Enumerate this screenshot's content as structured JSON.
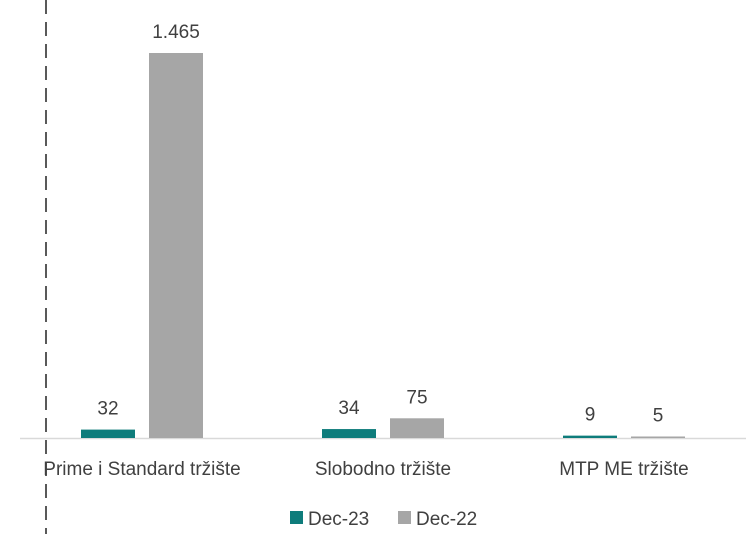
{
  "chart_data": {
    "type": "bar",
    "categories": [
      "Prime i Standard tržište",
      "Slobodno tržište",
      "MTP ME tržište"
    ],
    "series": [
      {
        "name": "Dec-23",
        "values": [
          32,
          34,
          9
        ],
        "labels": [
          "32",
          "34",
          "9"
        ],
        "color": "#0E7C7B"
      },
      {
        "name": "Dec-22",
        "values": [
          1465,
          75,
          5
        ],
        "labels": [
          "1.465",
          "75",
          "5"
        ],
        "color": "#A6A6A6"
      }
    ],
    "ylim": [
      0,
      1465
    ],
    "grid": false,
    "legend_position": "bottom"
  }
}
